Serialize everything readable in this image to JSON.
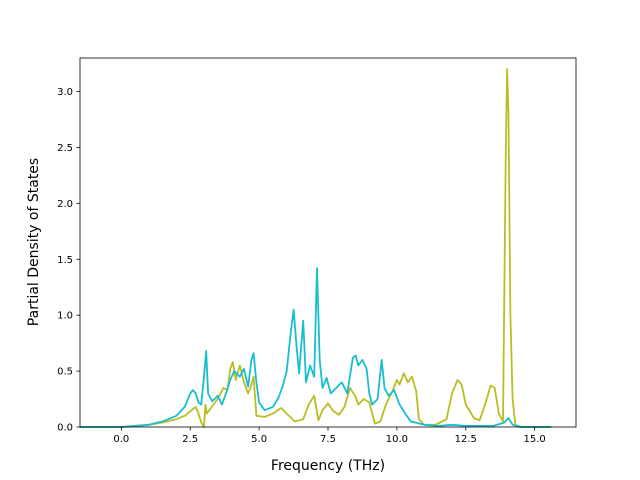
{
  "chart_data": {
    "type": "line",
    "title": "",
    "xlabel": "Frequency (THz)",
    "ylabel": "Partial Density of States",
    "xlim": [
      -1.5,
      16.5
    ],
    "ylim": [
      0,
      3.3
    ],
    "xticks": [
      0.0,
      2.5,
      5.0,
      7.5,
      10.0,
      12.5,
      15.0
    ],
    "xtick_labels": [
      "0.0",
      "2.5",
      "5.0",
      "7.5",
      "10.0",
      "12.5",
      "15.0"
    ],
    "yticks": [
      0.0,
      0.5,
      1.0,
      1.5,
      2.0,
      2.5,
      3.0
    ],
    "ytick_labels": [
      "0.0",
      "0.5",
      "1.0",
      "1.5",
      "2.0",
      "2.5",
      "3.0"
    ],
    "grid": false,
    "legend": "none",
    "series": [
      {
        "color": "#bcbd22",
        "points": [
          [
            -1.5,
            0.0
          ],
          [
            0.0,
            0.0
          ],
          [
            1.0,
            0.02
          ],
          [
            1.5,
            0.04
          ],
          [
            2.0,
            0.07
          ],
          [
            2.3,
            0.1
          ],
          [
            2.5,
            0.14
          ],
          [
            2.7,
            0.18
          ],
          [
            2.8,
            0.12
          ],
          [
            2.9,
            0.04
          ],
          [
            3.0,
            0.0
          ],
          [
            3.05,
            0.2
          ],
          [
            3.1,
            0.12
          ],
          [
            3.25,
            0.17
          ],
          [
            3.5,
            0.25
          ],
          [
            3.7,
            0.35
          ],
          [
            3.85,
            0.33
          ],
          [
            3.95,
            0.52
          ],
          [
            4.05,
            0.58
          ],
          [
            4.15,
            0.42
          ],
          [
            4.3,
            0.55
          ],
          [
            4.45,
            0.4
          ],
          [
            4.6,
            0.3
          ],
          [
            4.7,
            0.36
          ],
          [
            4.8,
            0.45
          ],
          [
            4.9,
            0.1
          ],
          [
            5.2,
            0.09
          ],
          [
            5.5,
            0.12
          ],
          [
            5.8,
            0.17
          ],
          [
            6.0,
            0.12
          ],
          [
            6.3,
            0.05
          ],
          [
            6.6,
            0.07
          ],
          [
            6.8,
            0.2
          ],
          [
            7.0,
            0.28
          ],
          [
            7.15,
            0.06
          ],
          [
            7.3,
            0.15
          ],
          [
            7.5,
            0.21
          ],
          [
            7.7,
            0.14
          ],
          [
            7.9,
            0.11
          ],
          [
            8.1,
            0.18
          ],
          [
            8.3,
            0.35
          ],
          [
            8.5,
            0.27
          ],
          [
            8.6,
            0.2
          ],
          [
            8.8,
            0.25
          ],
          [
            9.0,
            0.22
          ],
          [
            9.2,
            0.03
          ],
          [
            9.4,
            0.05
          ],
          [
            9.6,
            0.2
          ],
          [
            9.8,
            0.3
          ],
          [
            10.0,
            0.42
          ],
          [
            10.1,
            0.38
          ],
          [
            10.25,
            0.48
          ],
          [
            10.4,
            0.4
          ],
          [
            10.55,
            0.45
          ],
          [
            10.7,
            0.32
          ],
          [
            10.8,
            0.07
          ],
          [
            11.0,
            0.02
          ],
          [
            11.4,
            0.02
          ],
          [
            11.8,
            0.07
          ],
          [
            12.0,
            0.3
          ],
          [
            12.2,
            0.42
          ],
          [
            12.35,
            0.38
          ],
          [
            12.5,
            0.2
          ],
          [
            12.8,
            0.08
          ],
          [
            13.0,
            0.06
          ],
          [
            13.2,
            0.2
          ],
          [
            13.4,
            0.37
          ],
          [
            13.55,
            0.35
          ],
          [
            13.7,
            0.12
          ],
          [
            13.85,
            0.05
          ],
          [
            13.95,
            2.4
          ],
          [
            14.0,
            3.2
          ],
          [
            14.05,
            2.8
          ],
          [
            14.12,
            1.0
          ],
          [
            14.2,
            0.25
          ],
          [
            14.3,
            0.02
          ],
          [
            14.5,
            0.0
          ],
          [
            15.6,
            0.0
          ]
        ]
      },
      {
        "color": "#17becf",
        "points": [
          [
            -1.5,
            0.0
          ],
          [
            0.0,
            0.0
          ],
          [
            1.0,
            0.02
          ],
          [
            1.5,
            0.05
          ],
          [
            2.0,
            0.1
          ],
          [
            2.3,
            0.18
          ],
          [
            2.5,
            0.3
          ],
          [
            2.6,
            0.33
          ],
          [
            2.7,
            0.3
          ],
          [
            2.8,
            0.22
          ],
          [
            2.9,
            0.2
          ],
          [
            3.0,
            0.45
          ],
          [
            3.08,
            0.68
          ],
          [
            3.15,
            0.3
          ],
          [
            3.3,
            0.23
          ],
          [
            3.5,
            0.28
          ],
          [
            3.65,
            0.2
          ],
          [
            3.8,
            0.3
          ],
          [
            3.95,
            0.42
          ],
          [
            4.1,
            0.5
          ],
          [
            4.3,
            0.45
          ],
          [
            4.45,
            0.52
          ],
          [
            4.6,
            0.36
          ],
          [
            4.72,
            0.6
          ],
          [
            4.8,
            0.66
          ],
          [
            4.9,
            0.4
          ],
          [
            5.0,
            0.22
          ],
          [
            5.2,
            0.15
          ],
          [
            5.5,
            0.18
          ],
          [
            5.7,
            0.26
          ],
          [
            5.85,
            0.36
          ],
          [
            6.0,
            0.5
          ],
          [
            6.15,
            0.85
          ],
          [
            6.25,
            1.05
          ],
          [
            6.35,
            0.75
          ],
          [
            6.45,
            0.48
          ],
          [
            6.6,
            0.95
          ],
          [
            6.7,
            0.4
          ],
          [
            6.85,
            0.55
          ],
          [
            7.0,
            0.45
          ],
          [
            7.1,
            1.42
          ],
          [
            7.2,
            0.6
          ],
          [
            7.3,
            0.35
          ],
          [
            7.45,
            0.44
          ],
          [
            7.6,
            0.3
          ],
          [
            7.8,
            0.35
          ],
          [
            8.0,
            0.4
          ],
          [
            8.2,
            0.3
          ],
          [
            8.4,
            0.62
          ],
          [
            8.5,
            0.64
          ],
          [
            8.6,
            0.55
          ],
          [
            8.75,
            0.6
          ],
          [
            8.9,
            0.52
          ],
          [
            9.0,
            0.3
          ],
          [
            9.1,
            0.2
          ],
          [
            9.3,
            0.25
          ],
          [
            9.45,
            0.6
          ],
          [
            9.55,
            0.35
          ],
          [
            9.7,
            0.28
          ],
          [
            9.9,
            0.33
          ],
          [
            10.1,
            0.2
          ],
          [
            10.3,
            0.12
          ],
          [
            10.5,
            0.05
          ],
          [
            11.0,
            0.02
          ],
          [
            11.5,
            0.01
          ],
          [
            12.0,
            0.02
          ],
          [
            12.5,
            0.01
          ],
          [
            13.0,
            0.01
          ],
          [
            13.5,
            0.01
          ],
          [
            13.9,
            0.04
          ],
          [
            14.05,
            0.08
          ],
          [
            14.2,
            0.02
          ],
          [
            14.5,
            0.0
          ],
          [
            15.6,
            0.0
          ]
        ]
      }
    ]
  }
}
